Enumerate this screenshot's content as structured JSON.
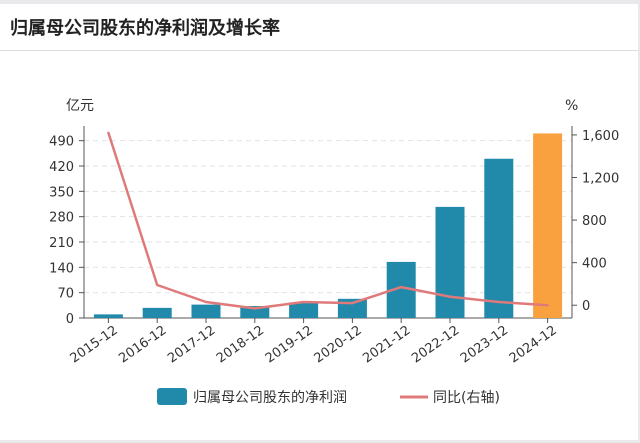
{
  "page": {
    "title": "归属母公司股东的净利润及增长率"
  },
  "chart_data": {
    "type": "bar",
    "categories": [
      "2015-12",
      "2016-12",
      "2017-12",
      "2018-12",
      "2019-12",
      "2020-12",
      "2021-12",
      "2022-12",
      "2023-12",
      "2024-12"
    ],
    "series": [
      {
        "name": "归属母公司股东的净利润",
        "type": "bar",
        "axis": "left",
        "values": [
          10,
          28,
          37,
          33,
          43,
          53,
          155,
          307,
          440,
          510
        ],
        "color": "#2189aa",
        "highlight_color": "#f9a03f",
        "highlight_index": 9
      },
      {
        "name": "同比(右轴)",
        "type": "line",
        "axis": "right",
        "values": [
          1620,
          190,
          30,
          -30,
          30,
          20,
          170,
          80,
          30,
          0
        ],
        "color": "#e07a7a"
      }
    ],
    "y_left": {
      "unit": "亿元",
      "ticks": [
        0,
        70,
        140,
        210,
        280,
        350,
        420,
        490
      ],
      "range": [
        0,
        525
      ]
    },
    "y_right": {
      "unit": "%",
      "ticks": [
        "0",
        "400",
        "800",
        "1,200",
        "1,600"
      ],
      "tick_values": [
        0,
        400,
        800,
        1200,
        1600
      ],
      "range": [
        -120,
        1665
      ]
    },
    "grid": true,
    "legend_position": "bottom"
  }
}
